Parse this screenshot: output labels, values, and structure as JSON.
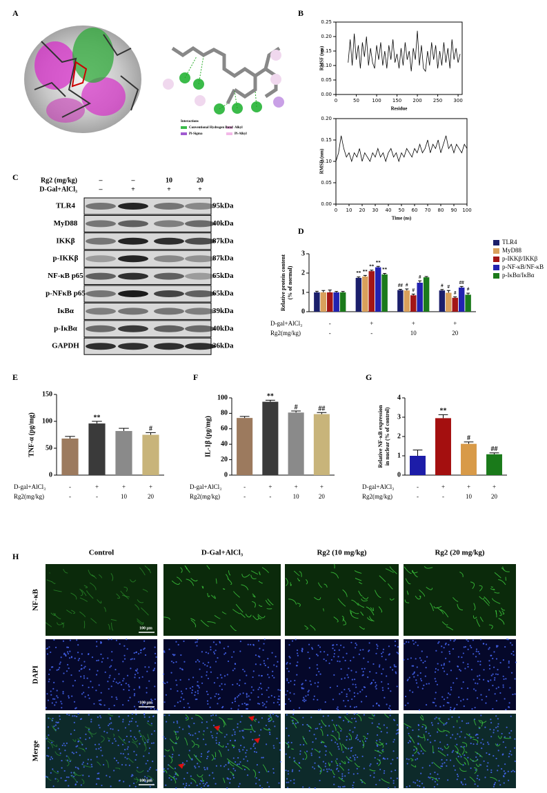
{
  "docking": {
    "panel": "A",
    "legend_title": "Interactions",
    "legend": [
      "Conventional Hydrogen Bond",
      "Pi-Sigma",
      "Alkyl",
      "Pi-Alkyl"
    ]
  },
  "western_blot": {
    "panel": "C",
    "header": [
      {
        "label": "Rg2 (mg/kg)",
        "values": [
          "–",
          "–",
          "10",
          "20"
        ]
      },
      {
        "label": "D-Gal+AlCl₃",
        "values": [
          "–",
          "+",
          "+",
          "+"
        ]
      }
    ],
    "rows": [
      {
        "protein": "TLR4",
        "size": "95kDa"
      },
      {
        "protein": "MyD88",
        "size": "40kDa"
      },
      {
        "protein": "IKKβ",
        "size": "87kDa"
      },
      {
        "protein": "p-IKKβ",
        "size": "87kDa"
      },
      {
        "protein": "NF-κB p65",
        "size": "65kDa"
      },
      {
        "protein": "p-NFκB p65",
        "size": "65kDa"
      },
      {
        "protein": "IκBα",
        "size": "39kDa"
      },
      {
        "protein": "p-IκBα",
        "size": "40kDa"
      },
      {
        "protein": "GAPDH",
        "size": "36kDa"
      }
    ]
  },
  "immunofluorescence": {
    "panel": "H",
    "columns": [
      "Control",
      "D-Gal+AlCl₃",
      "Rg2 (10 mg/kg)",
      "Rg2 (20 mg/kg)"
    ],
    "rows": [
      "NF-κB",
      "DAPI",
      "Merge"
    ],
    "scale_bar": "100 μm"
  },
  "chart_data": [
    {
      "type": "line",
      "panel": "B",
      "xlabel": "Residue",
      "ylabel": "RMSF (nm)",
      "x": [
        30,
        35,
        40,
        45,
        50,
        55,
        60,
        65,
        70,
        75,
        80,
        85,
        90,
        95,
        100,
        105,
        110,
        115,
        120,
        125,
        130,
        135,
        140,
        145,
        150,
        155,
        160,
        165,
        170,
        175,
        180,
        185,
        190,
        195,
        200,
        205,
        210,
        215,
        220,
        225,
        230,
        235,
        240,
        245,
        250,
        255,
        260,
        265,
        270,
        275,
        280,
        285,
        290,
        295,
        300,
        305
      ],
      "series": [
        {
          "color": "#000000",
          "values": [
            0.11,
            0.19,
            0.1,
            0.21,
            0.12,
            0.17,
            0.09,
            0.18,
            0.13,
            0.2,
            0.1,
            0.16,
            0.11,
            0.09,
            0.17,
            0.12,
            0.18,
            0.1,
            0.15,
            0.09,
            0.17,
            0.12,
            0.19,
            0.11,
            0.14,
            0.09,
            0.16,
            0.1,
            0.18,
            0.12,
            0.15,
            0.08,
            0.16,
            0.12,
            0.22,
            0.1,
            0.17,
            0.09,
            0.08,
            0.15,
            0.1,
            0.18,
            0.12,
            0.17,
            0.09,
            0.15,
            0.1,
            0.18,
            0.11,
            0.16,
            0.09,
            0.19,
            0.12,
            0.16,
            0.11,
            0.14
          ]
        }
      ],
      "xlim": [
        0,
        310
      ],
      "xticks": [
        0,
        50,
        100,
        150,
        200,
        250,
        300
      ],
      "ylim": [
        0,
        0.25
      ],
      "yticks": [
        {
          "value": 0,
          "label": "0.00"
        },
        0.05,
        {
          "value": 0.1,
          "label": "0.10"
        },
        0.15,
        {
          "value": 0.2,
          "label": "0.20"
        },
        0.25
      ]
    },
    {
      "type": "line",
      "xlabel": "Time (ns)",
      "ylabel": "RMSD (nm)",
      "x": [
        0,
        2,
        4,
        6,
        8,
        10,
        12,
        14,
        16,
        18,
        20,
        22,
        24,
        26,
        28,
        30,
        32,
        34,
        36,
        38,
        40,
        42,
        44,
        46,
        48,
        50,
        52,
        54,
        56,
        58,
        60,
        62,
        64,
        66,
        68,
        70,
        72,
        74,
        76,
        78,
        80,
        82,
        84,
        86,
        88,
        90,
        92,
        94,
        96,
        98,
        100
      ],
      "series": [
        {
          "color": "#000000",
          "values": [
            0.1,
            0.12,
            0.16,
            0.13,
            0.11,
            0.12,
            0.1,
            0.12,
            0.11,
            0.13,
            0.1,
            0.12,
            0.11,
            0.1,
            0.12,
            0.11,
            0.13,
            0.11,
            0.12,
            0.1,
            0.12,
            0.13,
            0.11,
            0.12,
            0.1,
            0.12,
            0.11,
            0.13,
            0.12,
            0.11,
            0.13,
            0.12,
            0.14,
            0.12,
            0.13,
            0.15,
            0.12,
            0.14,
            0.13,
            0.15,
            0.12,
            0.14,
            0.16,
            0.13,
            0.14,
            0.12,
            0.14,
            0.13,
            0.12,
            0.14,
            0.13
          ]
        }
      ],
      "xlim": [
        0,
        100
      ],
      "xticks": [
        0,
        10,
        20,
        30,
        40,
        50,
        60,
        70,
        80,
        90,
        100
      ],
      "ylim": [
        0,
        0.2
      ],
      "yticks": [
        {
          "value": 0,
          "label": "0.00"
        },
        0.05,
        {
          "value": 0.1,
          "label": "0.10"
        },
        0.15,
        {
          "value": 0.2,
          "label": "0.20"
        }
      ]
    },
    {
      "type": "bar",
      "panel": "D",
      "ylabel": [
        "Relative protein content",
        "(% of normal)"
      ],
      "conditions": [
        {
          "label": "D-gal+AlCl₃",
          "values": [
            "-",
            "+",
            "+",
            "+"
          ]
        },
        {
          "label": "Rg2(mg/kg)",
          "values": [
            "-",
            "-",
            "10",
            "20"
          ]
        }
      ],
      "series": [
        {
          "name": "TLR4",
          "color": "#1b1f6b",
          "values": [
            1.0,
            1.75,
            1.12,
            1.1
          ],
          "errors": [
            0.06,
            0.05,
            0.04,
            0.05
          ],
          "annotations": [
            null,
            "**",
            "##",
            "#"
          ]
        },
        {
          "name": "MyD88",
          "color": "#d9a05b",
          "values": [
            1.0,
            1.82,
            1.1,
            0.98
          ],
          "errors": [
            0.1,
            0.06,
            0.08,
            0.12
          ],
          "annotations": [
            null,
            "**",
            "#",
            "#"
          ]
        },
        {
          "name": "p-IKKβ/IKKβ",
          "color": "#a31616",
          "values": [
            1.0,
            2.1,
            0.85,
            0.72
          ],
          "errors": [
            0.12,
            0.05,
            0.06,
            0.05
          ],
          "annotations": [
            null,
            "**",
            "#",
            "#"
          ]
        },
        {
          "name": "p-NF-κB/NF-κB",
          "color": "#2222b0",
          "values": [
            1.0,
            2.3,
            1.5,
            1.25
          ],
          "errors": [
            0.05,
            0.05,
            0.1,
            0.06
          ],
          "annotations": [
            null,
            "**",
            "#",
            "##"
          ]
        },
        {
          "name": "p-IκBα/IκBα",
          "color": "#1b7a1b",
          "values": [
            1.0,
            1.93,
            1.78,
            0.88
          ],
          "errors": [
            0.05,
            0.05,
            0.04,
            0.08
          ],
          "annotations": [
            null,
            "**",
            null,
            "#"
          ]
        }
      ],
      "ylim": [
        0,
        3
      ],
      "yticks": [
        0,
        1,
        2,
        3
      ]
    },
    {
      "type": "bar",
      "panel": "E",
      "ylabel": [
        "TNF-α (pg/mg)"
      ],
      "conditions": [
        {
          "label": "D-gal+AlCl₃",
          "values": [
            "-",
            "+",
            "+",
            "+"
          ]
        },
        {
          "label": "Rg2(mg/kg)",
          "values": [
            "-",
            "-",
            "10",
            "20"
          ]
        }
      ],
      "values": [
        68,
        96,
        82,
        75
      ],
      "errors": [
        4,
        4,
        5,
        4
      ],
      "annotations": [
        null,
        "**",
        null,
        "#"
      ],
      "colors": [
        "#9c7a5e",
        "#3a3a3a",
        "#8a8a8a",
        "#c8b47a"
      ],
      "ylim": [
        0,
        150
      ],
      "yticks": [
        0,
        50,
        100,
        150
      ]
    },
    {
      "type": "bar",
      "panel": "F",
      "ylabel": [
        "IL-1β (pg/mg)"
      ],
      "conditions": [
        {
          "label": "D-gal+AlCl₃",
          "values": [
            "-",
            "+",
            "+",
            "+"
          ]
        },
        {
          "label": "Rg2(mg/kg)",
          "values": [
            "-",
            "-",
            "10",
            "20"
          ]
        }
      ],
      "values": [
        74,
        95,
        81,
        79
      ],
      "errors": [
        2,
        2,
        2,
        2
      ],
      "annotations": [
        null,
        "**",
        "#",
        "##"
      ],
      "colors": [
        "#9c7a5e",
        "#3a3a3a",
        "#8a8a8a",
        "#c8b47a"
      ],
      "ylim": [
        0,
        100
      ],
      "yticks": [
        0,
        20,
        40,
        60,
        80,
        100
      ]
    },
    {
      "type": "bar",
      "panel": "G",
      "ylabel": [
        "Relative NF-κB expression",
        "in nuclear (% of control)"
      ],
      "conditions": [
        {
          "label": "D-gal+AlCl₃",
          "values": [
            "-",
            "+",
            "+",
            "+"
          ]
        },
        {
          "label": "Rg2(mg/kg)",
          "values": [
            "-",
            "-",
            "10",
            "20"
          ]
        }
      ],
      "values": [
        1.0,
        2.95,
        1.62,
        1.08
      ],
      "errors": [
        0.3,
        0.18,
        0.1,
        0.07
      ],
      "annotations": [
        null,
        "**",
        "#",
        "##"
      ],
      "colors": [
        "#1c1ca8",
        "#a40f0f",
        "#d89a48",
        "#1a7a1a"
      ],
      "ylim": [
        0,
        4
      ],
      "yticks": [
        0,
        1,
        2,
        3,
        4
      ]
    }
  ]
}
